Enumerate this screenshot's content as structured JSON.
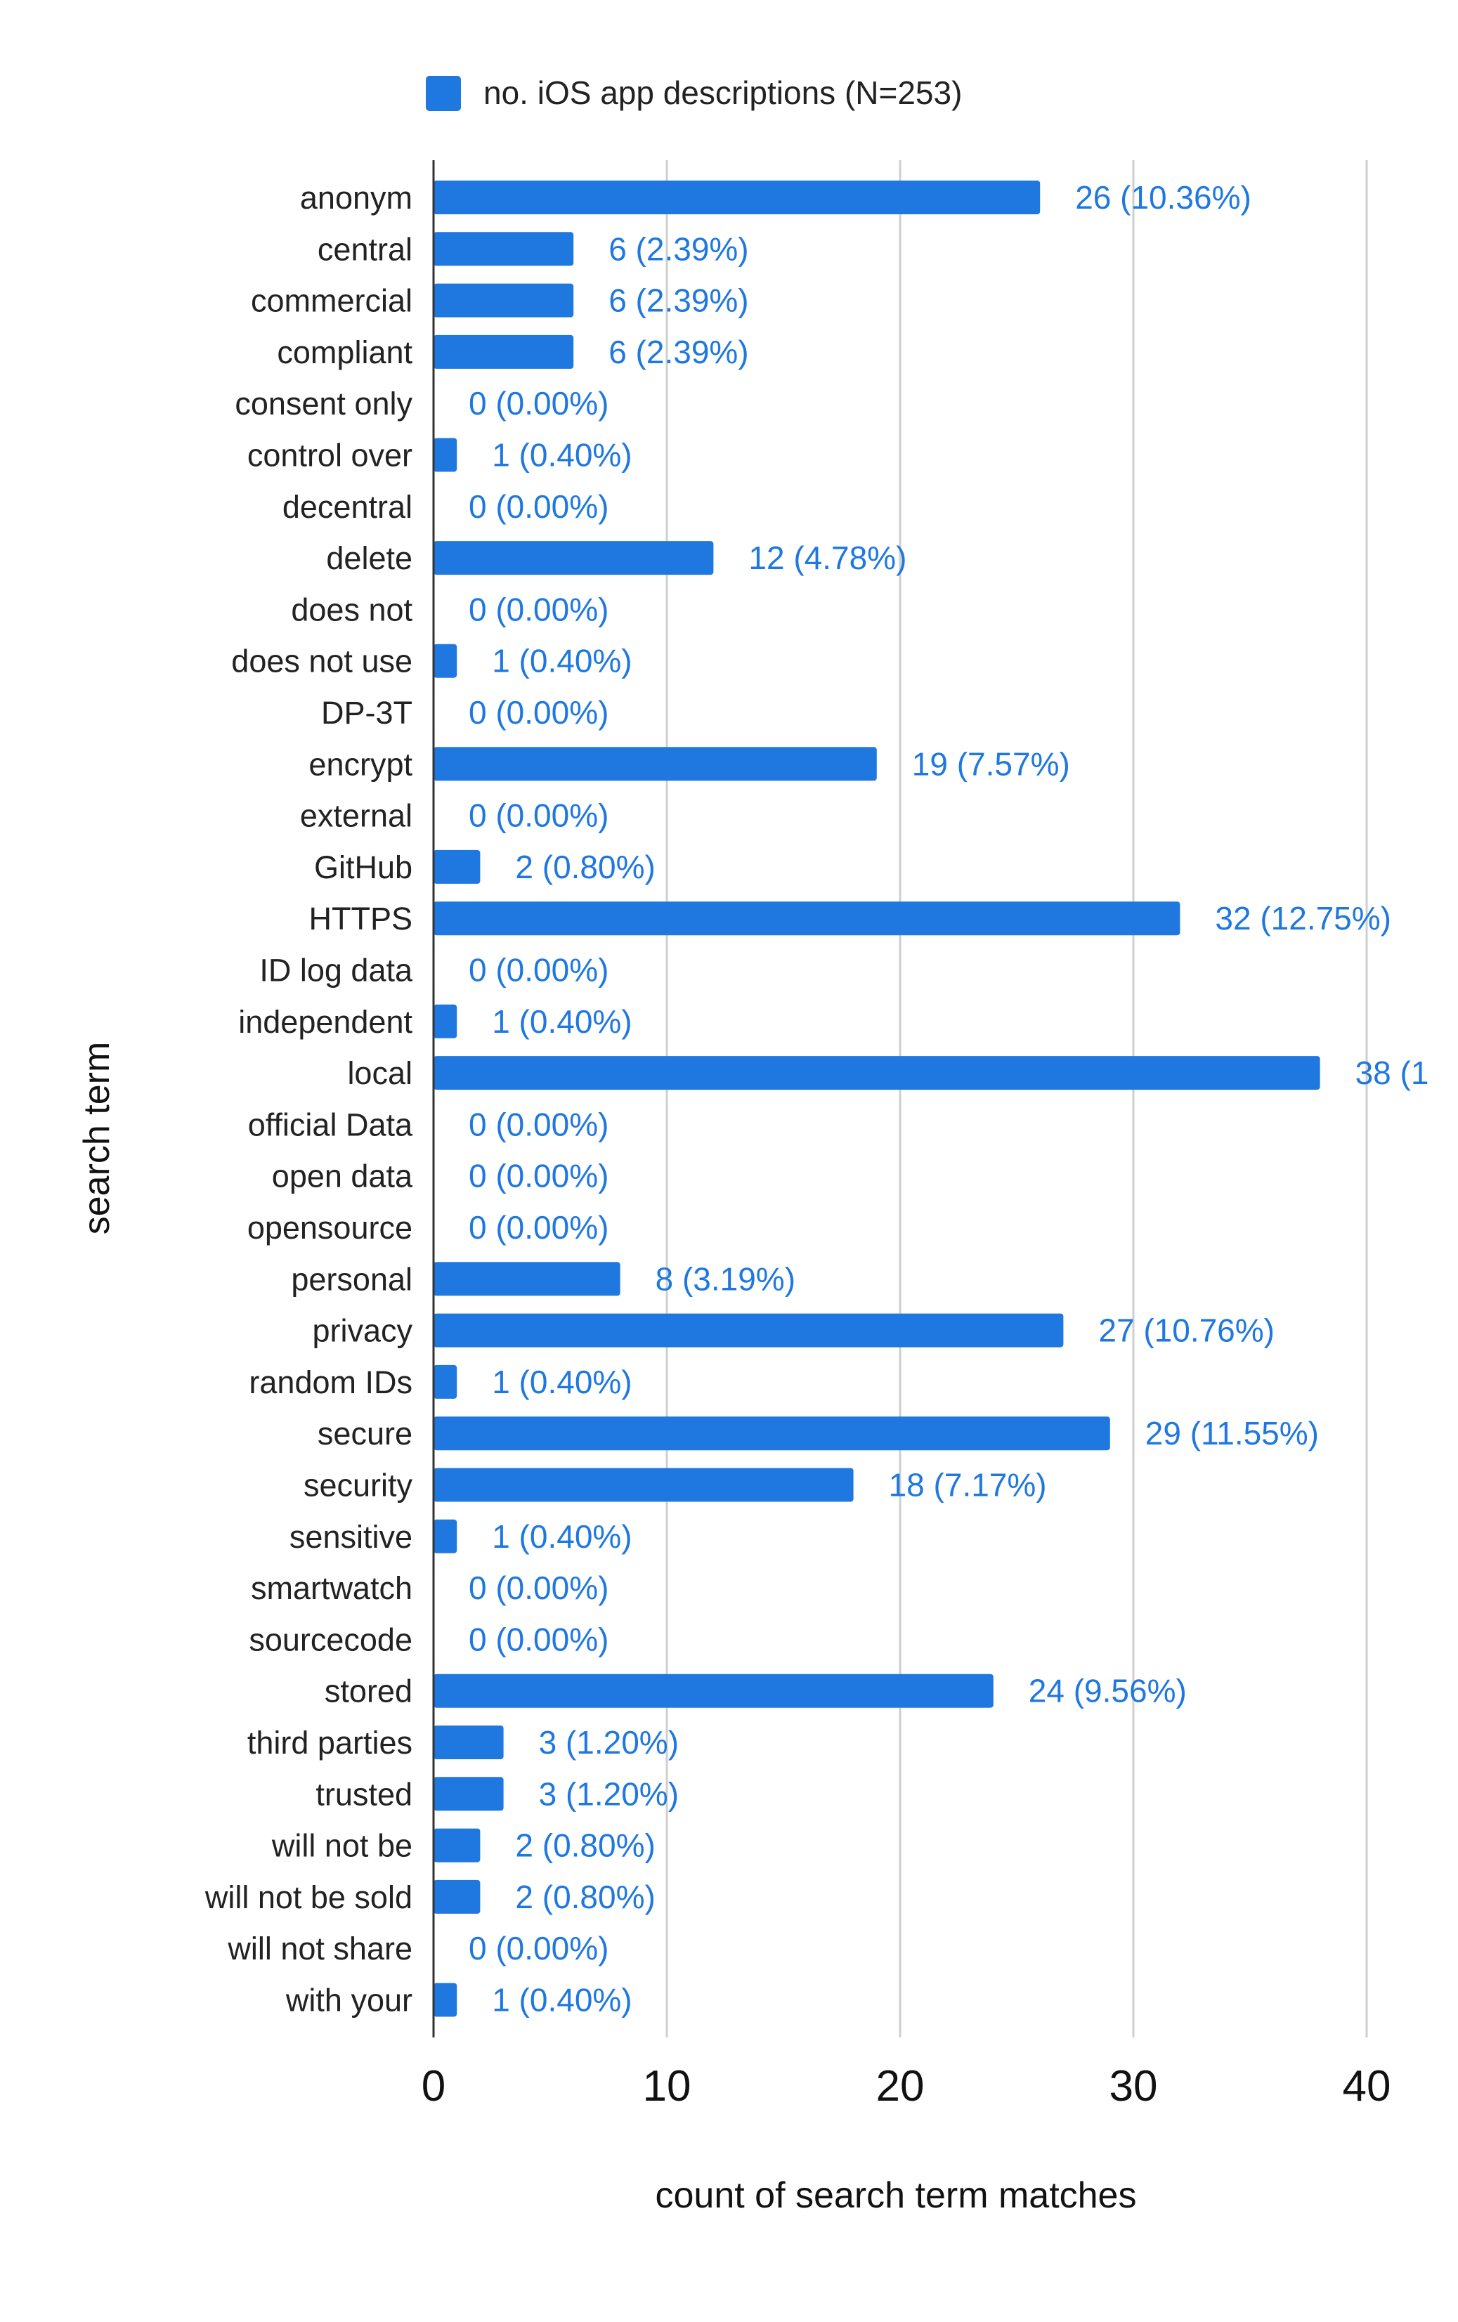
{
  "chart_data": {
    "type": "bar",
    "orientation": "horizontal",
    "title": "",
    "xlabel": "count of search term matches",
    "ylabel": "search term",
    "xlim": [
      0,
      40
    ],
    "x_ticks": [
      0,
      10,
      20,
      30,
      40
    ],
    "grid": "vertical",
    "legend_position": "top",
    "bar_color": "#1f78e0",
    "label_color": "#1f78e0",
    "series": [
      {
        "name": "no. iOS app descriptions (N=253)"
      }
    ],
    "categories": [
      "anonym",
      "central",
      "commercial",
      "compliant",
      "consent only",
      "control over",
      "decentral",
      "delete",
      "does not",
      "does not use",
      "DP-3T",
      "encrypt",
      "external",
      "GitHub",
      "HTTPS",
      "ID log data",
      "independent",
      "local",
      "official Data",
      "open data",
      "opensource",
      "personal",
      "privacy",
      "random IDs",
      "secure",
      "security",
      "sensitive",
      "smartwatch",
      "sourcecode",
      "stored",
      "third parties",
      "trusted",
      "will not be",
      "will not be sold",
      "will not share",
      "with your"
    ],
    "values": [
      26,
      6,
      6,
      6,
      0,
      1,
      0,
      12,
      0,
      1,
      0,
      19,
      0,
      2,
      32,
      0,
      1,
      38,
      0,
      0,
      0,
      8,
      27,
      1,
      29,
      18,
      1,
      0,
      0,
      24,
      3,
      3,
      2,
      2,
      0,
      1
    ],
    "data_labels": [
      "26 (10.36%)",
      "6 (2.39%)",
      "6 (2.39%)",
      "6 (2.39%)",
      "0 (0.00%)",
      "1 (0.40%)",
      "0 (0.00%)",
      "12 (4.78%)",
      "0 (0.00%)",
      "1 (0.40%)",
      "0 (0.00%)",
      "19 (7.57%)",
      "0 (0.00%)",
      "2 (0.80%)",
      "32 (12.75%)",
      "0 (0.00%)",
      "1 (0.40%)",
      "38 (1",
      "0 (0.00%)",
      "0 (0.00%)",
      "0 (0.00%)",
      "8 (3.19%)",
      "27 (10.76%)",
      "1 (0.40%)",
      "29 (11.55%)",
      "18 (7.17%)",
      "1 (0.40%)",
      "0 (0.00%)",
      "0 (0.00%)",
      "24 (9.56%)",
      "3 (1.20%)",
      "3 (1.20%)",
      "2 (0.80%)",
      "2 (0.80%)",
      "0 (0.00%)",
      "1 (0.40%)"
    ]
  }
}
